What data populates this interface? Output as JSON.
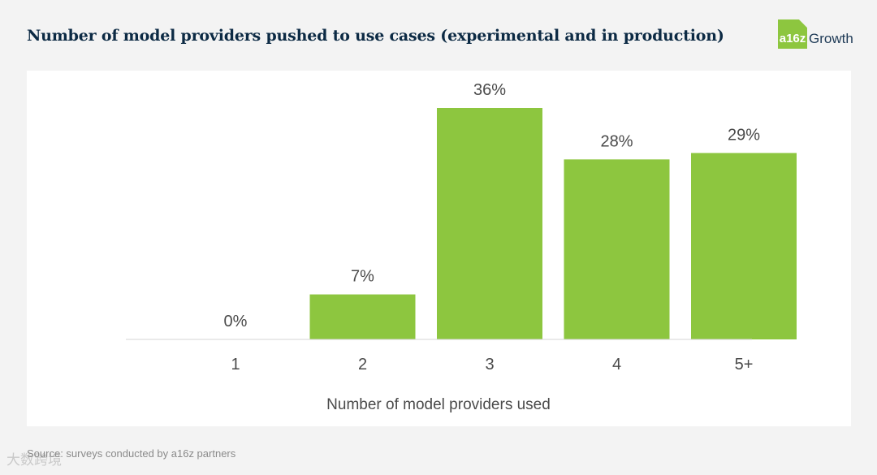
{
  "header": {
    "title": "Number of model providers pushed to use cases (experimental and in production)"
  },
  "logo": {
    "mark": "a16z",
    "text": "Growth"
  },
  "chart_data": {
    "type": "bar",
    "categories": [
      "1",
      "2",
      "3",
      "4",
      "5+"
    ],
    "values": [
      0,
      7,
      36,
      28,
      29
    ],
    "value_labels": [
      "0%",
      "7%",
      "36%",
      "28%",
      "29%"
    ],
    "xlabel": "Number of model providers used",
    "ylabel": "",
    "ylim": [
      0,
      36
    ],
    "grid": false,
    "bar_color": "#8dc63f"
  },
  "footer": {
    "source": "Source: surveys conducted by a16z partners",
    "watermark": "大数跨境"
  },
  "colors": {
    "title": "#0c2a44",
    "bar": "#8dc63f",
    "text": "#4a4a4a"
  }
}
